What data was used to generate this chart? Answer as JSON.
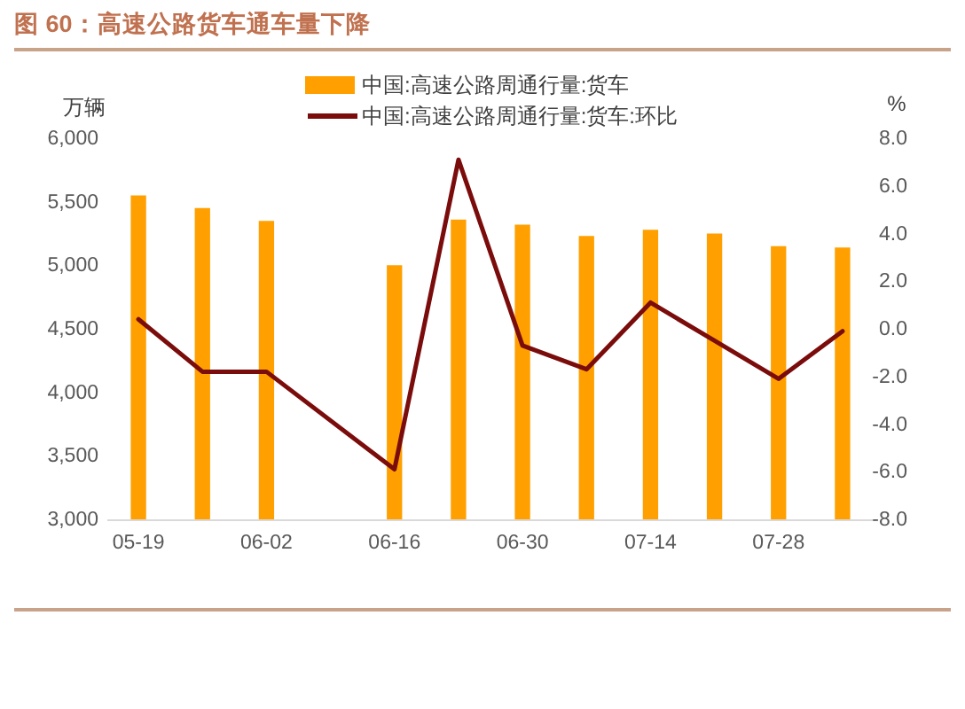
{
  "chart_data": {
    "type": "bar",
    "title": "图 60：高速公路货车通车量下降",
    "ylabel": "万辆",
    "y2label": "%",
    "categories": [
      "05-19",
      null,
      "06-02",
      null,
      "06-16",
      null,
      "06-30",
      null,
      "07-14",
      null,
      "07-28",
      null
    ],
    "series": [
      {
        "name": "中国:高速公路周通行量:货车",
        "color": "#ffa000",
        "values": [
          5550,
          5450,
          5350,
          null,
          5000,
          5360,
          5320,
          5230,
          5280,
          5250,
          5150,
          5140
        ]
      },
      {
        "name": "中国:高速公路周通行量:货车:环比",
        "type": "line",
        "axis": "y2",
        "color": "#7b0c0c",
        "values": [
          0.4,
          -1.8,
          -1.8,
          null,
          -5.9,
          7.1,
          -0.7,
          -1.7,
          1.1,
          -0.5,
          -2.1,
          -0.1
        ]
      }
    ],
    "ylim": [
      3000,
      6000
    ],
    "yticks": [
      {
        "value": 3000,
        "label": "3,000"
      },
      {
        "value": 3500,
        "label": "3,500"
      },
      {
        "value": 4000,
        "label": "4,000"
      },
      {
        "value": 4500,
        "label": "4,500"
      },
      {
        "value": 5000,
        "label": "5,000"
      },
      {
        "value": 5500,
        "label": "5,500"
      },
      {
        "value": 6000,
        "label": "6,000"
      }
    ],
    "y2lim": [
      -8,
      8
    ],
    "y2ticks": [
      {
        "value": -8,
        "label": "-8.0"
      },
      {
        "value": -6,
        "label": "-6.0"
      },
      {
        "value": -4,
        "label": "-4.0"
      },
      {
        "value": -2,
        "label": "-2.0"
      },
      {
        "value": 0,
        "label": "0.0"
      },
      {
        "value": 2,
        "label": "2.0"
      },
      {
        "value": 4,
        "label": "4.0"
      },
      {
        "value": 6,
        "label": "6.0"
      },
      {
        "value": 8,
        "label": "8.0"
      }
    ],
    "legend": "top"
  }
}
